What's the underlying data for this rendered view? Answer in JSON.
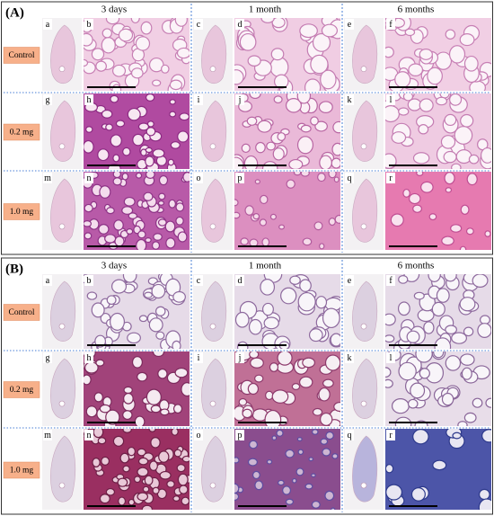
{
  "panels": [
    {
      "label": "(A)",
      "columns": [
        "3 days",
        "1 month",
        "6 months"
      ],
      "rows": [
        {
          "label": "Control",
          "letters": [
            "a",
            "b",
            "c",
            "d",
            "e",
            "f"
          ]
        },
        {
          "label": "0.2 mg",
          "letters": [
            "g",
            "h",
            "i",
            "j",
            "k",
            "l"
          ]
        },
        {
          "label": "1.0 mg",
          "letters": [
            "m",
            "n",
            "o",
            "p",
            "q",
            "r"
          ]
        }
      ]
    },
    {
      "label": "(B)",
      "columns": [
        "3 days",
        "1 month",
        "6 months"
      ],
      "rows": [
        {
          "label": "Control",
          "letters": [
            "a",
            "b",
            "c",
            "d",
            "e",
            "f"
          ]
        },
        {
          "label": "0.2 mg",
          "letters": [
            "g",
            "h",
            "i",
            "j",
            "k",
            "l"
          ]
        },
        {
          "label": "1.0 mg",
          "letters": [
            "m",
            "n",
            "o",
            "p",
            "q",
            "r"
          ]
        }
      ]
    }
  ]
}
